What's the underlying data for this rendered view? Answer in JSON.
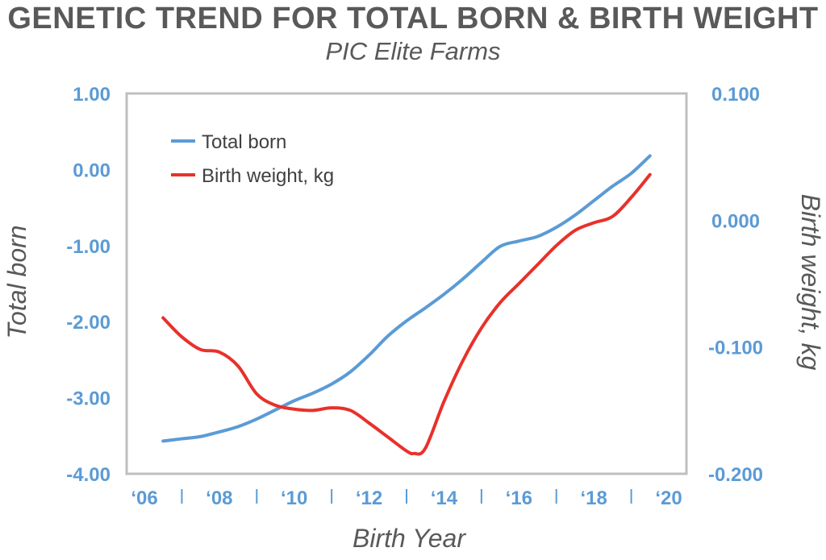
{
  "title": "GENETIC TREND FOR TOTAL BORN & BIRTH WEIGHT",
  "subtitle": "PIC Elite Farms",
  "colors": {
    "total_born": "#5b9bd5",
    "birth_weight": "#e8312a",
    "axis_text": "#5b9bd5",
    "frame": "#bfbfbf"
  },
  "chart_data": {
    "type": "line",
    "title": "GENETIC TREND FOR TOTAL BORN & BIRTH WEIGHT",
    "subtitle": "PIC Elite Farms",
    "xlabel": "Birth Year",
    "ylabel": "Total born",
    "y2label": "Birth weight, kg",
    "xlim": [
      2006,
      2020
    ],
    "ylim": [
      -4,
      1
    ],
    "y2lim": [
      -0.2,
      0.1
    ],
    "x_tick_labels": [
      "‘06",
      "‘08",
      "‘10",
      "‘12",
      "‘14",
      "‘16",
      "‘18",
      "‘20"
    ],
    "y_tick_labels": [
      "1.00",
      "0.00",
      "-1.00",
      "-2.00",
      "-3.00",
      "-4.00"
    ],
    "y2_tick_labels": [
      "0.100",
      "0.000",
      "-0.100",
      "-0.200"
    ],
    "legend_position": "top-left",
    "series": [
      {
        "name": "Total born",
        "axis": "left",
        "x": [
          2006.5,
          2007.0,
          2007.5,
          2008.0,
          2008.5,
          2009.0,
          2009.5,
          2010.0,
          2010.5,
          2011.0,
          2011.5,
          2012.0,
          2012.5,
          2013.0,
          2013.5,
          2014.0,
          2014.5,
          2015.0,
          2015.5,
          2016.0,
          2016.5,
          2017.0,
          2017.5,
          2018.0,
          2018.5,
          2019.0,
          2019.5
        ],
        "values": [
          -3.57,
          -3.54,
          -3.51,
          -3.45,
          -3.38,
          -3.28,
          -3.16,
          -3.04,
          -2.94,
          -2.82,
          -2.66,
          -2.44,
          -2.19,
          -1.99,
          -1.82,
          -1.64,
          -1.44,
          -1.22,
          -1.01,
          -0.94,
          -0.88,
          -0.76,
          -0.6,
          -0.41,
          -0.22,
          -0.05,
          0.18
        ]
      },
      {
        "name": "Birth weight, kg",
        "axis": "right",
        "x": [
          2006.5,
          2007.0,
          2007.5,
          2008.0,
          2008.5,
          2009.0,
          2009.5,
          2010.0,
          2010.5,
          2011.0,
          2011.5,
          2012.0,
          2012.5,
          2013.0,
          2013.2,
          2013.5,
          2014.0,
          2014.5,
          2015.0,
          2015.5,
          2016.0,
          2016.5,
          2017.0,
          2017.5,
          2018.0,
          2018.5,
          2019.0,
          2019.5
        ],
        "values": [
          -0.077,
          -0.092,
          -0.102,
          -0.104,
          -0.115,
          -0.137,
          -0.146,
          -0.149,
          -0.15,
          -0.148,
          -0.15,
          -0.16,
          -0.171,
          -0.182,
          -0.184,
          -0.18,
          -0.143,
          -0.111,
          -0.085,
          -0.065,
          -0.05,
          -0.035,
          -0.02,
          -0.008,
          -0.002,
          0.003,
          0.018,
          0.036
        ]
      }
    ]
  }
}
